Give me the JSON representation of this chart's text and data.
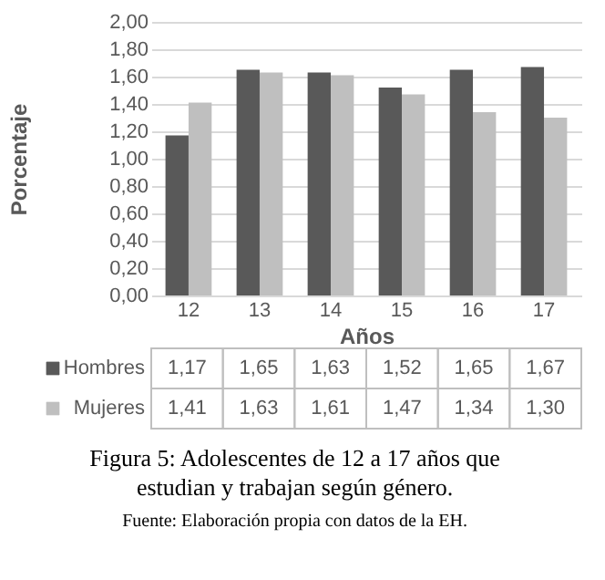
{
  "chart_data": {
    "type": "bar",
    "title": "Figura 5: Adolescentes de 12 a 17 años que estudian y trabajan según género.",
    "xlabel": "Años",
    "ylabel": "Porcentaje",
    "annotations": [
      "Fuente: Elaboración propia con datos de la EH."
    ],
    "categories": [
      "12",
      "13",
      "14",
      "15",
      "16",
      "17"
    ],
    "series": [
      {
        "name": "Hombres",
        "color": "#595959",
        "values": [
          1.17,
          1.65,
          1.63,
          1.52,
          1.65,
          1.67
        ],
        "value_labels": [
          "1,17",
          "1,65",
          "1,63",
          "1,52",
          "1,65",
          "1,67"
        ]
      },
      {
        "name": "Mujeres",
        "color": "#bfbfbf",
        "values": [
          1.41,
          1.63,
          1.61,
          1.47,
          1.34,
          1.3
        ],
        "value_labels": [
          "1,41",
          "1,63",
          "1,61",
          "1,47",
          "1,34",
          "1,30"
        ]
      }
    ],
    "ylim": [
      0,
      2
    ],
    "yticks": [
      {
        "value": 0,
        "label": "0,00"
      },
      {
        "value": 0.2,
        "label": "0,20"
      },
      {
        "value": 0.4,
        "label": "0,40"
      },
      {
        "value": 0.6,
        "label": "0,60"
      },
      {
        "value": 0.8,
        "label": "0,80"
      },
      {
        "value": 1,
        "label": "1,00"
      },
      {
        "value": 1.2,
        "label": "1,20"
      },
      {
        "value": 1.4,
        "label": "1,40"
      },
      {
        "value": 1.6,
        "label": "1,60"
      },
      {
        "value": 1.8,
        "label": "1,80"
      },
      {
        "value": 2,
        "label": "2,00"
      }
    ],
    "grid": "y",
    "legend": "bottom"
  }
}
